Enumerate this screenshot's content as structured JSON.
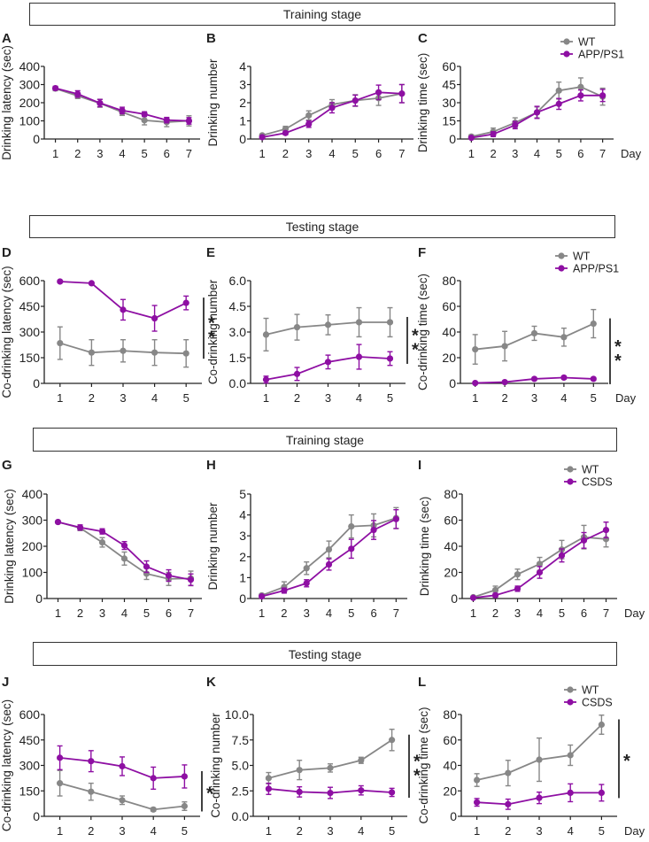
{
  "sections": [
    {
      "label": "Training stage"
    },
    {
      "label": "Testing stage"
    },
    {
      "label": "Training stage"
    },
    {
      "label": "Testing stage"
    }
  ],
  "colors": {
    "wt": "#878787",
    "model": "#8e0fa3",
    "axis": "#222222"
  },
  "chart_data": [
    {
      "panel": "A",
      "type": "line",
      "title": "",
      "xlabel": "",
      "ylabel": "Drinking latency (sec)",
      "x": [
        1,
        2,
        3,
        4,
        5,
        6,
        7
      ],
      "ylim": [
        0,
        400
      ],
      "yticks": [
        0,
        100,
        200,
        300,
        400
      ],
      "ytick_labels": [
        "0",
        "100",
        "200",
        "300",
        "400"
      ],
      "series": [
        {
          "name": "WT",
          "values": [
            278,
            238,
            197,
            148,
            103,
            93,
            100
          ],
          "errors": [
            12,
            15,
            22,
            18,
            25,
            25,
            28
          ]
        },
        {
          "name": "APP/PS1",
          "values": [
            280,
            248,
            198,
            157,
            137,
            104,
            100
          ],
          "errors": [
            10,
            18,
            20,
            18,
            13,
            15,
            18
          ]
        }
      ],
      "legend": null,
      "significance": null,
      "day_label": null
    },
    {
      "panel": "B",
      "type": "line",
      "title": "",
      "xlabel": "",
      "ylabel": "Drinking number",
      "x": [
        1,
        2,
        3,
        4,
        5,
        6,
        7
      ],
      "ylim": [
        0,
        4
      ],
      "yticks": [
        0,
        1,
        2,
        3,
        4
      ],
      "ytick_labels": [
        "0",
        "1",
        "2",
        "3",
        "4"
      ],
      "series": [
        {
          "name": "WT",
          "values": [
            0.2,
            0.55,
            1.3,
            1.9,
            2.12,
            2.25,
            2.5
          ],
          "errors": [
            0.08,
            0.15,
            0.25,
            0.27,
            0.32,
            0.4,
            0.5
          ]
        },
        {
          "name": "APP/PS1",
          "values": [
            0.1,
            0.33,
            0.82,
            1.72,
            2.12,
            2.57,
            2.5
          ],
          "errors": [
            0.06,
            0.1,
            0.18,
            0.28,
            0.3,
            0.4,
            0.5
          ]
        }
      ],
      "legend": null,
      "significance": null,
      "day_label": null
    },
    {
      "panel": "C",
      "type": "line",
      "title": "",
      "xlabel": "Day",
      "ylabel": "Drinking time (sec)",
      "x": [
        1,
        2,
        3,
        4,
        5,
        6,
        7
      ],
      "ylim": [
        0,
        60
      ],
      "yticks": [
        0,
        15,
        30,
        45,
        60
      ],
      "ytick_labels": [
        "0",
        "15",
        "30",
        "45",
        "60"
      ],
      "series": [
        {
          "name": "WT",
          "values": [
            2,
            6,
            13.5,
            22,
            40,
            43,
            35
          ],
          "errors": [
            1.5,
            3,
            4,
            4.5,
            7,
            7.5,
            7
          ]
        },
        {
          "name": "APP/PS1",
          "values": [
            1,
            4,
            11.5,
            22,
            29,
            36,
            36
          ],
          "errors": [
            1,
            2,
            3,
            5,
            4.5,
            4.5,
            5
          ]
        }
      ],
      "legend": {
        "entries": [
          "WT",
          "APP/PS1"
        ],
        "position": "top-right"
      },
      "significance": null,
      "day_label": "Day"
    },
    {
      "panel": "D",
      "type": "line",
      "title": "",
      "xlabel": "",
      "ylabel": "Co-drinking latency (sec)",
      "x": [
        1,
        2,
        3,
        4,
        5
      ],
      "ylim": [
        0,
        600
      ],
      "yticks": [
        0,
        150,
        300,
        450,
        600
      ],
      "ytick_labels": [
        "0",
        "150",
        "300",
        "450",
        "600"
      ],
      "series": [
        {
          "name": "WT",
          "values": [
            235,
            180,
            190,
            180,
            175
          ],
          "errors": [
            95,
            75,
            65,
            75,
            80
          ]
        },
        {
          "name": "APP/PS1",
          "values": [
            595,
            585,
            430,
            380,
            470
          ],
          "errors": [
            0,
            0,
            60,
            75,
            40
          ]
        }
      ],
      "legend": null,
      "significance": "**",
      "day_label": null
    },
    {
      "panel": "E",
      "type": "line",
      "title": "",
      "xlabel": "",
      "ylabel": "Co-drinking number",
      "x": [
        1,
        2,
        3,
        4,
        5
      ],
      "ylim": [
        0,
        6
      ],
      "yticks": [
        0,
        1.5,
        3,
        4.5,
        6
      ],
      "ytick_labels": [
        "0.0",
        "1.5",
        "3.0",
        "4.5",
        "6.0"
      ],
      "series": [
        {
          "name": "WT",
          "values": [
            2.85,
            3.28,
            3.42,
            3.57,
            3.57
          ],
          "errors": [
            0.95,
            0.75,
            0.58,
            0.85,
            0.85
          ]
        },
        {
          "name": "APP/PS1",
          "values": [
            0.22,
            0.55,
            1.25,
            1.55,
            1.45
          ],
          "errors": [
            0.2,
            0.38,
            0.4,
            0.72,
            0.4
          ]
        }
      ],
      "legend": null,
      "significance": "**",
      "day_label": null
    },
    {
      "panel": "F",
      "type": "line",
      "title": "",
      "xlabel": "Day",
      "ylabel": "Co-drinking time (sec)",
      "x": [
        1,
        2,
        3,
        4,
        5
      ],
      "ylim": [
        0,
        80
      ],
      "yticks": [
        0,
        20,
        40,
        60,
        80
      ],
      "ytick_labels": [
        "0",
        "20",
        "40",
        "60",
        "80"
      ],
      "series": [
        {
          "name": "WT",
          "values": [
            26.5,
            29,
            39,
            36,
            46.5
          ],
          "errors": [
            11.5,
            11.5,
            5.5,
            7,
            11
          ]
        },
        {
          "name": "APP/PS1",
          "values": [
            0.3,
            1,
            3.5,
            4.5,
            3.5
          ],
          "errors": [
            0.5,
            0.8,
            1,
            1.2,
            1
          ]
        }
      ],
      "legend": {
        "entries": [
          "WT",
          "APP/PS1"
        ],
        "position": "top-right"
      },
      "significance": "**",
      "day_label": "Day"
    },
    {
      "panel": "G",
      "type": "line",
      "title": "",
      "xlabel": "",
      "ylabel": "Drinking latency (sec)",
      "x": [
        1,
        2,
        3,
        4,
        5,
        6,
        7
      ],
      "ylim": [
        0,
        400
      ],
      "yticks": [
        0,
        100,
        200,
        300,
        400
      ],
      "ytick_labels": [
        "0",
        "100",
        "200",
        "300",
        "400"
      ],
      "series": [
        {
          "name": "WT",
          "values": [
            293,
            270,
            215,
            153,
            95,
            75,
            77
          ],
          "errors": [
            5,
            10,
            18,
            25,
            22,
            25,
            28
          ]
        },
        {
          "name": "CSDS",
          "values": [
            293,
            272,
            257,
            203,
            122,
            88,
            72
          ],
          "errors": [
            5,
            10,
            10,
            15,
            22,
            22,
            22
          ]
        }
      ],
      "legend": null,
      "significance": null,
      "day_label": null
    },
    {
      "panel": "H",
      "type": "line",
      "title": "",
      "xlabel": "",
      "ylabel": "Drinking number",
      "x": [
        1,
        2,
        3,
        4,
        5,
        6,
        7
      ],
      "ylim": [
        0,
        5
      ],
      "yticks": [
        0,
        1,
        2,
        3,
        4,
        5
      ],
      "ytick_labels": [
        "0",
        "1",
        "2",
        "3",
        "4",
        "5"
      ],
      "series": [
        {
          "name": "WT",
          "values": [
            0.15,
            0.55,
            1.45,
            2.35,
            3.45,
            3.5,
            3.85
          ],
          "errors": [
            0.08,
            0.25,
            0.3,
            0.4,
            0.55,
            0.55,
            0.5
          ]
        },
        {
          "name": "CSDS",
          "values": [
            0.1,
            0.38,
            0.73,
            1.63,
            2.38,
            3.28,
            3.8
          ],
          "errors": [
            0.08,
            0.12,
            0.17,
            0.27,
            0.45,
            0.45,
            0.45
          ]
        }
      ],
      "legend": null,
      "significance": null,
      "day_label": null
    },
    {
      "panel": "I",
      "type": "line",
      "title": "",
      "xlabel": "Day",
      "ylabel": "Drinking time (sec)",
      "x": [
        1,
        2,
        3,
        4,
        5,
        6,
        7
      ],
      "ylim": [
        0,
        80
      ],
      "yticks": [
        0,
        20,
        40,
        60,
        80
      ],
      "ytick_labels": [
        "0",
        "20",
        "40",
        "60",
        "80"
      ],
      "series": [
        {
          "name": "WT",
          "values": [
            1,
            6.5,
            18.5,
            26.5,
            37.5,
            47,
            45.5
          ],
          "errors": [
            0.8,
            3,
            4,
            5,
            7,
            9,
            6
          ]
        },
        {
          "name": "CSDS",
          "values": [
            0.5,
            2.5,
            7.5,
            20,
            33,
            44.5,
            52.5
          ],
          "errors": [
            0.5,
            1.5,
            2,
            4.5,
            5,
            6,
            6
          ]
        }
      ],
      "legend": {
        "entries": [
          "WT",
          "CSDS"
        ],
        "position": "top-right"
      },
      "significance": null,
      "day_label": "Day"
    },
    {
      "panel": "J",
      "type": "line",
      "title": "",
      "xlabel": "",
      "ylabel": "Co-drinking latency (sec)",
      "x": [
        1,
        2,
        3,
        4,
        5
      ],
      "ylim": [
        0,
        600
      ],
      "yticks": [
        0,
        150,
        300,
        450,
        600
      ],
      "ytick_labels": [
        "0",
        "150",
        "300",
        "450",
        "600"
      ],
      "series": [
        {
          "name": "WT",
          "values": [
            195,
            145,
            95,
            40,
            60
          ],
          "errors": [
            75,
            50,
            25,
            10,
            25
          ]
        },
        {
          "name": "CSDS",
          "values": [
            345,
            325,
            295,
            225,
            235
          ],
          "errors": [
            70,
            62,
            55,
            65,
            68
          ]
        }
      ],
      "legend": null,
      "significance": "*",
      "day_label": null
    },
    {
      "panel": "K",
      "type": "line",
      "title": "",
      "xlabel": "",
      "ylabel": "Co-drinking number",
      "x": [
        1,
        2,
        3,
        4,
        5
      ],
      "ylim": [
        0,
        10
      ],
      "yticks": [
        0,
        2.5,
        5,
        7.5,
        10
      ],
      "ytick_labels": [
        "0.0",
        "2.5",
        "5.0",
        "7.5",
        "10.0"
      ],
      "series": [
        {
          "name": "WT",
          "values": [
            3.75,
            4.55,
            4.75,
            5.5,
            7.5
          ],
          "errors": [
            0.55,
            0.95,
            0.4,
            0.3,
            1.05
          ]
        },
        {
          "name": "CSDS",
          "values": [
            2.7,
            2.4,
            2.3,
            2.55,
            2.35
          ],
          "errors": [
            0.55,
            0.5,
            0.55,
            0.45,
            0.4
          ]
        }
      ],
      "legend": null,
      "significance": "**",
      "day_label": null
    },
    {
      "panel": "L",
      "type": "line",
      "title": "",
      "xlabel": "Day",
      "ylabel": "Co-drinking time (sec)",
      "x": [
        1,
        2,
        3,
        4,
        5
      ],
      "ylim": [
        0,
        80
      ],
      "yticks": [
        0,
        20,
        40,
        60,
        80
      ],
      "ytick_labels": [
        "0",
        "20",
        "40",
        "60",
        "80"
      ],
      "series": [
        {
          "name": "WT",
          "values": [
            28.5,
            34,
            44.5,
            48,
            72
          ],
          "errors": [
            5,
            10,
            17,
            8,
            7.5
          ]
        },
        {
          "name": "CSDS",
          "values": [
            11,
            9.5,
            14.5,
            18.5,
            18.5
          ],
          "errors": [
            3,
            4,
            4.5,
            7,
            6.5
          ]
        }
      ],
      "legend": {
        "entries": [
          "WT",
          "CSDS"
        ],
        "position": "top-right"
      },
      "significance": "*",
      "day_label": "Day"
    }
  ]
}
